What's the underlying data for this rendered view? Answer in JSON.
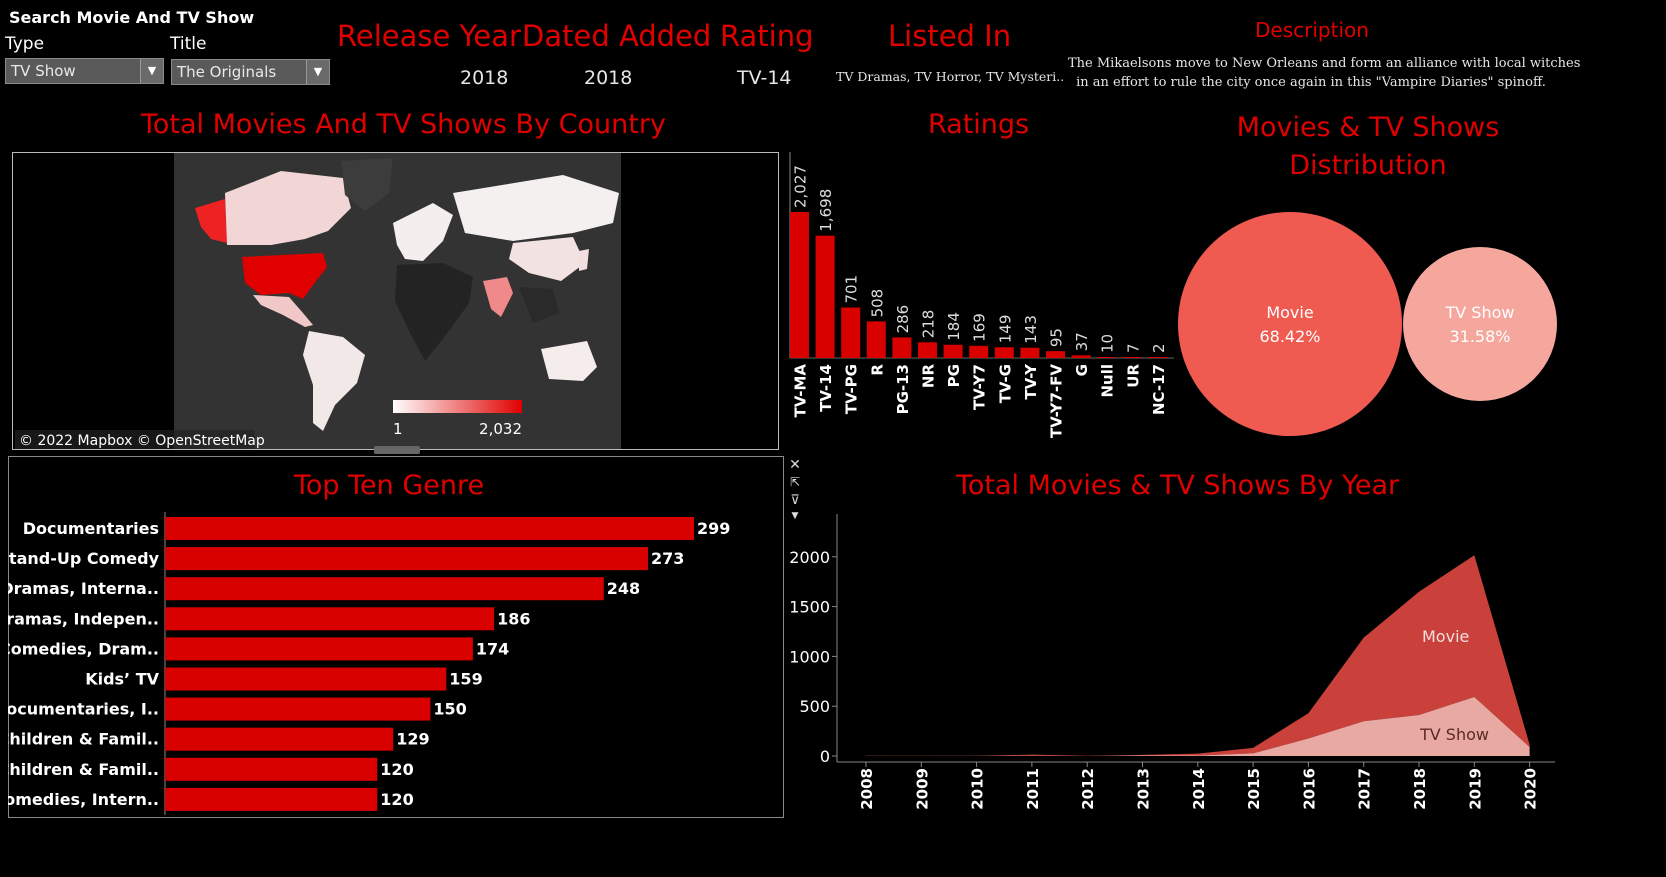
{
  "filters": {
    "panel_title": "Search Movie And TV Show",
    "type_label": "Type",
    "type_value": "TV Show",
    "title_label": "Title",
    "title_value": "The Originals"
  },
  "details": {
    "release_year_label": "Release Year",
    "release_year_value": "2018",
    "date_added_label": "Dated Added",
    "date_added_value": "2018",
    "rating_label": "Rating",
    "rating_value": "TV-14",
    "listed_in_label": "Listed In",
    "listed_in_value": "TV Dramas, TV Horror, TV Mysteri..",
    "description_label": "Description",
    "description_line1": "The Mikaelsons move to New Orleans and form an alliance with local witches",
    "description_line2": "in an effort to rule the city once again in this \"Vampire Diaries\" spinoff."
  },
  "map": {
    "title": "Total Movies And TV Shows By Country",
    "legend_min": "1",
    "legend_max": "2,032",
    "attribution": "© 2022 Mapbox © OpenStreetMap"
  },
  "ratings": {
    "title": "Ratings"
  },
  "distribution": {
    "title_line1": "Movies & TV Shows",
    "title_line2": "Distribution",
    "movie_label": "Movie",
    "movie_pct": "68.42%",
    "tv_label": "TV Show",
    "tv_pct": "31.58%"
  },
  "genre": {
    "title": "Top Ten Genre"
  },
  "by_year": {
    "title": "Total Movies & TV Shows By Year",
    "movie_label": "Movie",
    "tv_label": "TV Show"
  },
  "colors": {
    "accent": "#e00000",
    "bar": "#d90000",
    "movie_area": "#c9413a",
    "tv_area": "#e8a9a3",
    "movie_bubble": "#ef5b50",
    "tv_bubble": "#f6a79d"
  },
  "chart_data": [
    {
      "type": "bar",
      "id": "ratings",
      "categories": [
        "TV-MA",
        "TV-14",
        "TV-PG",
        "R",
        "PG-13",
        "NR",
        "PG",
        "TV-Y7",
        "TV-G",
        "TV-Y",
        "TV-Y7-FV",
        "G",
        "Null",
        "UR",
        "NC-17"
      ],
      "values": [
        2027,
        1698,
        701,
        508,
        286,
        218,
        184,
        169,
        149,
        143,
        95,
        37,
        10,
        7,
        2
      ],
      "labels": [
        "2,027",
        "1,698",
        "701",
        "508",
        "286",
        "218",
        "184",
        "169",
        "149",
        "143",
        "95",
        "37",
        "10",
        "7",
        "2"
      ]
    },
    {
      "type": "bar",
      "id": "genre",
      "orientation": "horizontal",
      "categories": [
        "Documentaries",
        "Stand-Up Comedy",
        "Dramas, Interna..",
        "Dramas, Indepen..",
        "Comedies, Dram..",
        "Kids’ TV",
        "Documentaries, I..",
        "Children & Famil..",
        "Children & Famil..",
        "Comedies, Intern.."
      ],
      "values": [
        299,
        273,
        248,
        186,
        174,
        159,
        150,
        129,
        120,
        120
      ]
    },
    {
      "type": "area",
      "id": "by_year",
      "x": [
        2008,
        2009,
        2010,
        2011,
        2012,
        2013,
        2014,
        2015,
        2016,
        2017,
        2018,
        2019,
        2020
      ],
      "y_ticks": [
        0,
        500,
        1000,
        1500,
        2000
      ],
      "series": [
        {
          "name": "Movie",
          "values": [
            2,
            2,
            1,
            13,
            3,
            6,
            19,
            56,
            253,
            839,
            1237,
            1424,
            25
          ]
        },
        {
          "name": "TV Show",
          "values": [
            1,
            0,
            1,
            1,
            0,
            5,
            5,
            26,
            176,
            349,
            412,
            592,
            90
          ]
        }
      ]
    },
    {
      "type": "pie",
      "id": "distribution",
      "categories": [
        "Movie",
        "TV Show"
      ],
      "values": [
        68.42,
        31.58
      ]
    }
  ]
}
